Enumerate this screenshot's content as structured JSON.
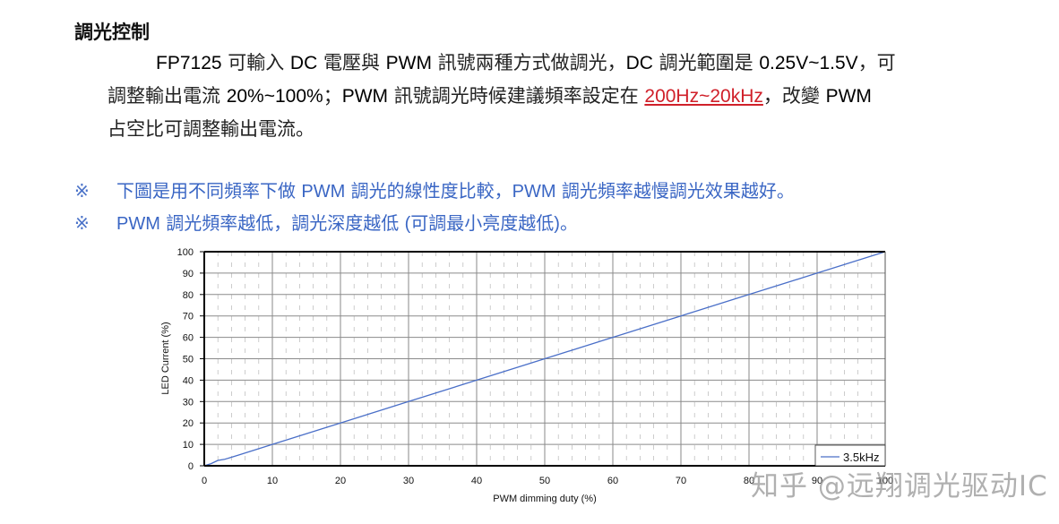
{
  "section": {
    "heading": "調光控制",
    "paragraph": {
      "line1_part1": "FP7125",
      "line1_part2": " 可輸入 ",
      "line1_part3": "DC",
      "line1_part4": " 電壓與 ",
      "line1_part5": "PWM",
      "line1_part6": " 訊號兩種方式做調光，",
      "line1_part7": "DC",
      "line1_part8": " 調光範圍是 ",
      "line1_part9": "0.25V~1.5V",
      "line1_part10": "，可",
      "line2_part1": "調整輸出電流 ",
      "line2_part2": " 20%~100%",
      "line2_part3": "；",
      "line2_part4": "PWM",
      "line2_part5": " 訊號調光時候建議頻率設定在 ",
      "line2_highlight": "200Hz~20kHz",
      "line2_part6": "，改變 ",
      "line2_part7": " PWM",
      "line3": "占空比可調整輸出電流。"
    },
    "notes": [
      {
        "mark": "※",
        "parts": [
          "下圖是用不同頻率下做 ",
          "PWM",
          " 調光的線性度比較，",
          "PWM",
          " 調光頻率越慢調光效果越好。"
        ]
      },
      {
        "mark": "※",
        "parts": [
          "PWM",
          " 調光頻率越低，調光深度越低 ",
          "(",
          "可調最小亮度越低",
          ")",
          "。"
        ]
      }
    ],
    "highlight_color": "#d0202a",
    "note_color": "#3a66c4"
  },
  "chart_data": {
    "type": "line",
    "title": "",
    "xlabel": "PWM dimming duty (%)",
    "ylabel": "LED Current (%)",
    "xlim": [
      0,
      100
    ],
    "ylim": [
      0,
      100
    ],
    "x_ticks": [
      "0",
      "10",
      "20",
      "30",
      "40",
      "50",
      "60",
      "70",
      "80",
      "90",
      "100"
    ],
    "y_ticks": [
      "0",
      "10",
      "20",
      "30",
      "40",
      "50",
      "60",
      "70",
      "80",
      "90",
      "100"
    ],
    "grid": true,
    "minor_grid": "dashed vertical every 2%",
    "legend_position": "lower right",
    "series": [
      {
        "name": "3.5kHz",
        "color": "#4a6fc8",
        "x": [
          0,
          1,
          2,
          3,
          5,
          10,
          20,
          30,
          40,
          50,
          60,
          70,
          80,
          90,
          100
        ],
        "values": [
          0,
          1,
          2.5,
          3,
          5,
          10,
          20,
          30,
          40,
          50,
          60,
          70,
          80,
          90,
          100
        ]
      }
    ]
  },
  "watermark": "知乎 @远翔调光驱动IC"
}
